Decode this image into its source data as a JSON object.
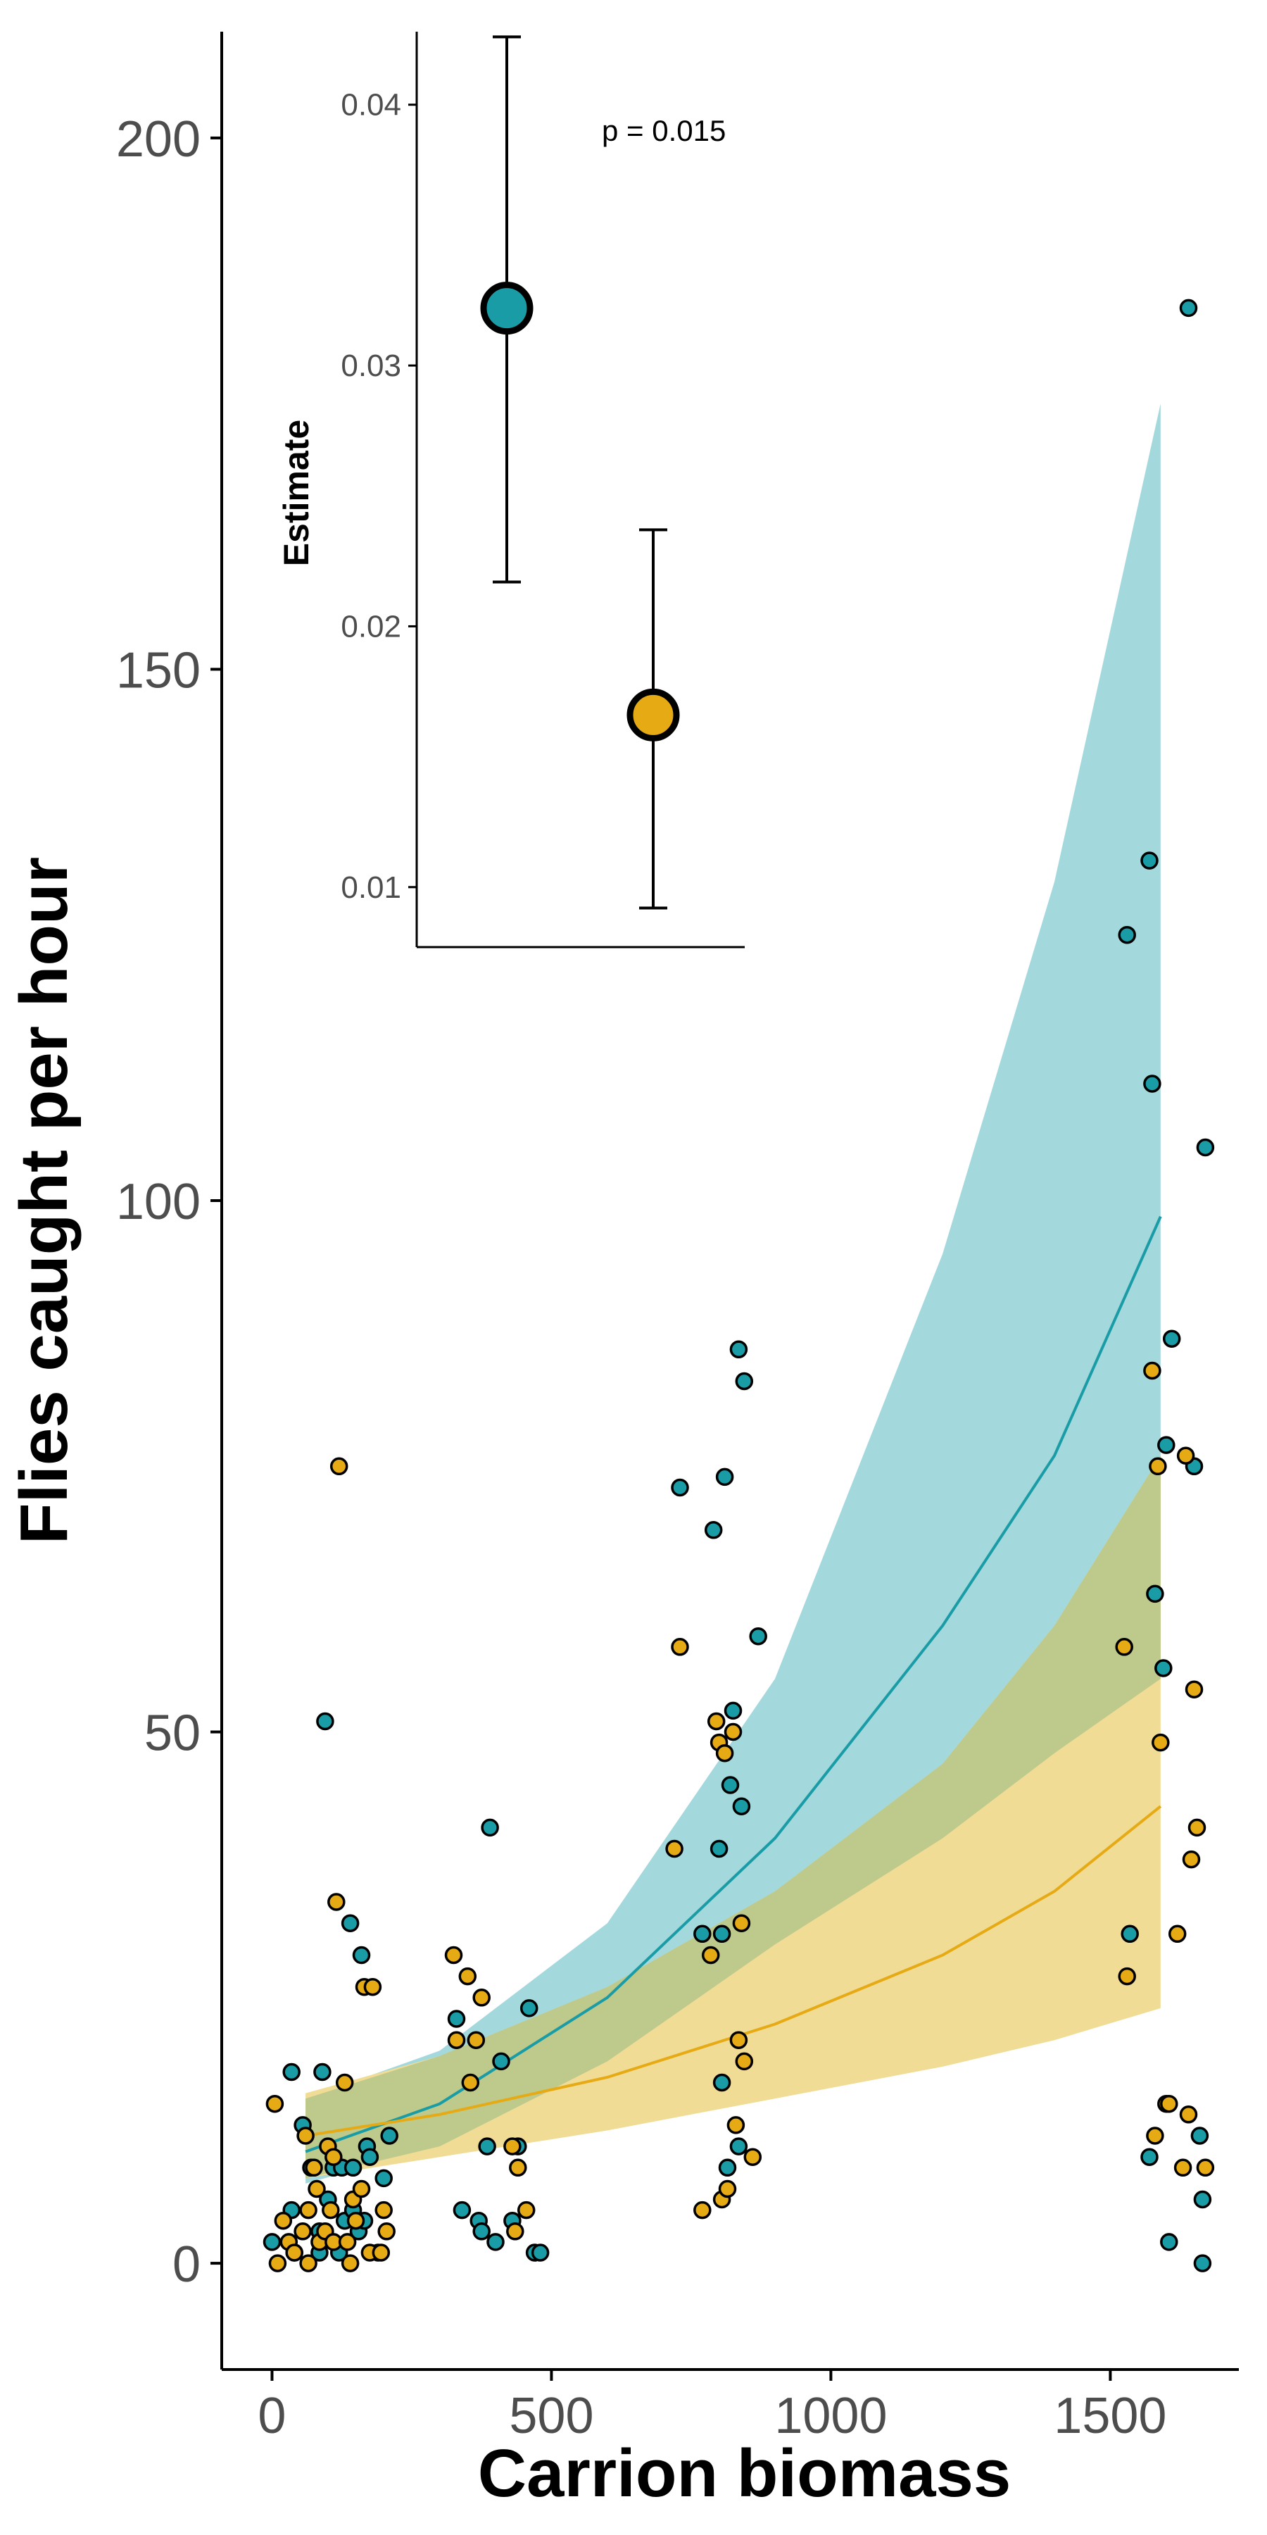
{
  "colors": {
    "teal": "#1a9ca6",
    "gold": "#e6aa14",
    "teal_band": "#a3d8dd",
    "gold_band": "#f1dc96",
    "overlap_band": "#bec98c"
  },
  "chart_data": [
    {
      "type": "scatter",
      "xlabel": "Carrion biomass",
      "ylabel": "Flies caught per hour",
      "xlim": [
        -90,
        1730
      ],
      "ylim": [
        -10,
        210
      ],
      "x_ticks": [
        0,
        500,
        1000,
        1500
      ],
      "y_ticks": [
        0,
        50,
        100,
        150,
        200
      ],
      "grid": false,
      "legend": "none",
      "series": [
        {
          "color_key": "teal",
          "fit": {
            "x_range": [
              60,
              1590
            ],
            "curve": [
              [
                60,
                10.5
              ],
              [
                300,
                15.0
              ],
              [
                600,
                25.0
              ],
              [
                900,
                40.0
              ],
              [
                1200,
                60.0
              ],
              [
                1400,
                76.0
              ],
              [
                1590,
                98.5
              ]
            ],
            "band_upper": [
              [
                60,
                15.5
              ],
              [
                300,
                20.0
              ],
              [
                600,
                32.0
              ],
              [
                900,
                55.0
              ],
              [
                1200,
                95.0
              ],
              [
                1400,
                130.0
              ],
              [
                1590,
                175.0
              ]
            ],
            "band_lower": [
              [
                60,
                7.5
              ],
              [
                300,
                11.0
              ],
              [
                600,
                19.0
              ],
              [
                900,
                30.0
              ],
              [
                1200,
                40.0
              ],
              [
                1400,
                48.0
              ],
              [
                1590,
                55.0
              ]
            ]
          },
          "points": [
            [
              0,
              2
            ],
            [
              35,
              18
            ],
            [
              35,
              5
            ],
            [
              40,
              1
            ],
            [
              55,
              13
            ],
            [
              70,
              9
            ],
            [
              85,
              1
            ],
            [
              85,
              3
            ],
            [
              90,
              18
            ],
            [
              95,
              51
            ],
            [
              100,
              6
            ],
            [
              110,
              9
            ],
            [
              120,
              1
            ],
            [
              125,
              9
            ],
            [
              130,
              4
            ],
            [
              140,
              32
            ],
            [
              145,
              5
            ],
            [
              145,
              9
            ],
            [
              155,
              3
            ],
            [
              160,
              29
            ],
            [
              165,
              4
            ],
            [
              170,
              11
            ],
            [
              175,
              10
            ],
            [
              190,
              1
            ],
            [
              200,
              8
            ],
            [
              210,
              12
            ],
            [
              330,
              23
            ],
            [
              340,
              5
            ],
            [
              370,
              4
            ],
            [
              375,
              3
            ],
            [
              385,
              11
            ],
            [
              390,
              41
            ],
            [
              400,
              2
            ],
            [
              410,
              19
            ],
            [
              430,
              4
            ],
            [
              440,
              11
            ],
            [
              460,
              24
            ],
            [
              470,
              1
            ],
            [
              480,
              1
            ],
            [
              730,
              73
            ],
            [
              770,
              31
            ],
            [
              790,
              69
            ],
            [
              800,
              39
            ],
            [
              805,
              31
            ],
            [
              805,
              17
            ],
            [
              810,
              74
            ],
            [
              815,
              9
            ],
            [
              820,
              45
            ],
            [
              825,
              52
            ],
            [
              835,
              86
            ],
            [
              835,
              11
            ],
            [
              840,
              43
            ],
            [
              845,
              83
            ],
            [
              870,
              59
            ],
            [
              1530,
              125
            ],
            [
              1535,
              31
            ],
            [
              1570,
              10
            ],
            [
              1570,
              132
            ],
            [
              1575,
              111
            ],
            [
              1580,
              63
            ],
            [
              1595,
              56
            ],
            [
              1600,
              77
            ],
            [
              1610,
              87
            ],
            [
              1605,
              2
            ],
            [
              1640,
              184
            ],
            [
              1650,
              75
            ],
            [
              1660,
              12
            ],
            [
              1665,
              6
            ],
            [
              1670,
              105
            ],
            [
              1665,
              0
            ]
          ]
        },
        {
          "color_key": "gold",
          "fit": {
            "x_range": [
              60,
              1590
            ],
            "curve": [
              [
                60,
                12.0
              ],
              [
                300,
                14.0
              ],
              [
                600,
                17.5
              ],
              [
                900,
                22.5
              ],
              [
                1200,
                29.0
              ],
              [
                1400,
                35.0
              ],
              [
                1590,
                43.0
              ]
            ],
            "band_upper": [
              [
                60,
                16.0
              ],
              [
                300,
                19.5
              ],
              [
                600,
                26.0
              ],
              [
                900,
                35.0
              ],
              [
                1200,
                47.0
              ],
              [
                1400,
                60.0
              ],
              [
                1590,
                76.0
              ]
            ],
            "band_lower": [
              [
                60,
                8.0
              ],
              [
                300,
                10.0
              ],
              [
                600,
                12.5
              ],
              [
                900,
                15.5
              ],
              [
                1200,
                18.5
              ],
              [
                1400,
                21.0
              ],
              [
                1590,
                24.0
              ]
            ]
          },
          "points": [
            [
              5,
              15
            ],
            [
              10,
              0
            ],
            [
              20,
              4
            ],
            [
              30,
              2
            ],
            [
              40,
              1
            ],
            [
              55,
              3
            ],
            [
              60,
              12
            ],
            [
              65,
              5
            ],
            [
              65,
              0
            ],
            [
              75,
              9
            ],
            [
              80,
              7
            ],
            [
              85,
              2
            ],
            [
              95,
              3
            ],
            [
              100,
              11
            ],
            [
              105,
              5
            ],
            [
              110,
              10
            ],
            [
              110,
              2
            ],
            [
              115,
              34
            ],
            [
              120,
              75
            ],
            [
              130,
              17
            ],
            [
              135,
              2
            ],
            [
              140,
              0
            ],
            [
              145,
              6
            ],
            [
              150,
              4
            ],
            [
              160,
              7
            ],
            [
              165,
              26
            ],
            [
              175,
              1
            ],
            [
              180,
              26
            ],
            [
              195,
              1
            ],
            [
              200,
              5
            ],
            [
              205,
              3
            ],
            [
              325,
              29
            ],
            [
              330,
              21
            ],
            [
              350,
              27
            ],
            [
              355,
              17
            ],
            [
              365,
              21
            ],
            [
              375,
              25
            ],
            [
              430,
              11
            ],
            [
              435,
              3
            ],
            [
              440,
              9
            ],
            [
              455,
              5
            ],
            [
              720,
              39
            ],
            [
              730,
              58
            ],
            [
              770,
              5
            ],
            [
              785,
              29
            ],
            [
              795,
              51
            ],
            [
              800,
              49
            ],
            [
              805,
              6
            ],
            [
              810,
              48
            ],
            [
              815,
              7
            ],
            [
              825,
              50
            ],
            [
              830,
              13
            ],
            [
              835,
              21
            ],
            [
              840,
              32
            ],
            [
              845,
              19
            ],
            [
              860,
              10
            ],
            [
              1525,
              58
            ],
            [
              1530,
              27
            ],
            [
              1575,
              84
            ],
            [
              1580,
              12
            ],
            [
              1585,
              75
            ],
            [
              1590,
              49
            ],
            [
              1600,
              15
            ],
            [
              1605,
              15
            ],
            [
              1620,
              31
            ],
            [
              1630,
              9
            ],
            [
              1635,
              76
            ],
            [
              1640,
              14
            ],
            [
              1645,
              38
            ],
            [
              1650,
              54
            ],
            [
              1655,
              41
            ],
            [
              1670,
              9
            ]
          ]
        }
      ]
    },
    {
      "type": "scatter",
      "ylabel": "Estimate",
      "ylim": [
        0.0077,
        0.0428
      ],
      "y_ticks": [
        0.01,
        0.02,
        0.03,
        0.04
      ],
      "y_tick_labels": [
        "0.01",
        "0.02",
        "0.03",
        "0.04"
      ],
      "annotation": "p = 0.015",
      "grid": false,
      "points": [
        {
          "color_key": "teal",
          "estimate": 0.0322,
          "ci": [
            0.0217,
            0.0426
          ]
        },
        {
          "color_key": "gold",
          "estimate": 0.0166,
          "ci": [
            0.0092,
            0.0237
          ]
        }
      ]
    }
  ]
}
